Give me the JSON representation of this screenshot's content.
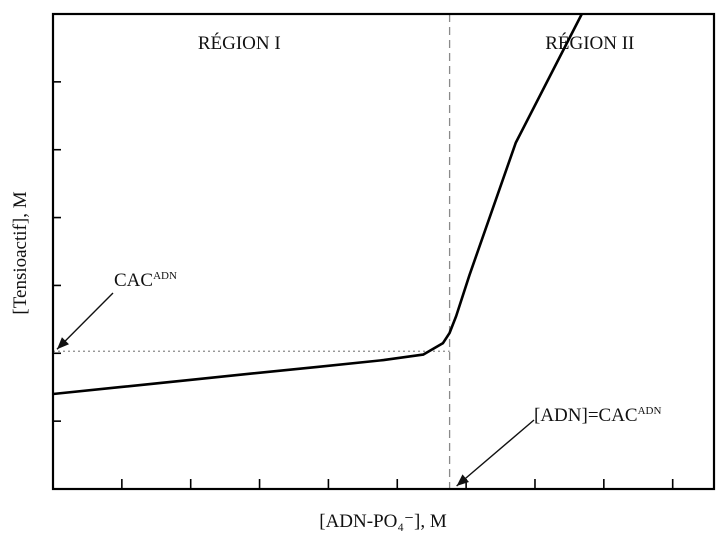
{
  "chart_data": {
    "type": "line",
    "title": "",
    "xlabel": "[ADN-PO₄⁻], M",
    "ylabel": "[Tensioactif], M",
    "xlim": [
      0,
      10
    ],
    "ylim": [
      0,
      7
    ],
    "x_ticks_count": 9,
    "y_ticks_count": 6,
    "x_tick_labels": [],
    "y_tick_labels": [],
    "grid": false,
    "series": [
      {
        "x": [
          0,
          1,
          2,
          3,
          4,
          5,
          5.6,
          5.9,
          6.0,
          6.1,
          6.3,
          7.0,
          8.0
        ],
        "y": [
          1.4,
          1.5,
          1.6,
          1.7,
          1.8,
          1.9,
          1.98,
          2.15,
          2.3,
          2.55,
          3.15,
          5.1,
          7.0
        ]
      }
    ],
    "reference_lines": [
      {
        "kind": "vertical",
        "x": 6.0,
        "style": "dashed"
      },
      {
        "kind": "horizontal",
        "y": 2.03,
        "x_to": 6.0,
        "style": "dotted"
      }
    ],
    "regions": [
      {
        "label": "RÉGION I"
      },
      {
        "label": "RÉGION II"
      }
    ],
    "annotations": [
      {
        "base": "CAC",
        "sup": "ADN",
        "points_to": {
          "x": 0,
          "y": 2.03
        }
      },
      {
        "base": "[ADN]=CAC",
        "sup": "ADN",
        "points_to": {
          "x": 6.0,
          "y": 0
        }
      }
    ]
  }
}
